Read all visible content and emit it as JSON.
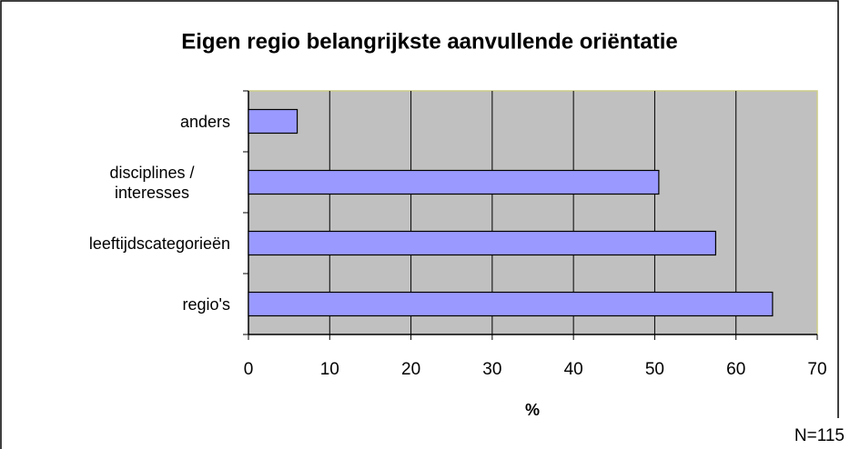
{
  "chart_data": {
    "type": "bar",
    "orientation": "horizontal",
    "title": "Eigen regio belangrijkste aanvullende oriëntatie",
    "categories": [
      "anders",
      "disciplines / interesses",
      "leeftijdscategorieën",
      "regio's"
    ],
    "values": [
      6,
      50.5,
      57.5,
      64.5
    ],
    "color": "#9999ff",
    "xlim": [
      0,
      70
    ],
    "xticks": [
      0,
      10,
      20,
      30,
      40,
      50,
      60,
      70
    ],
    "grid": true,
    "xlabel": "%",
    "annotation": "N=115"
  }
}
